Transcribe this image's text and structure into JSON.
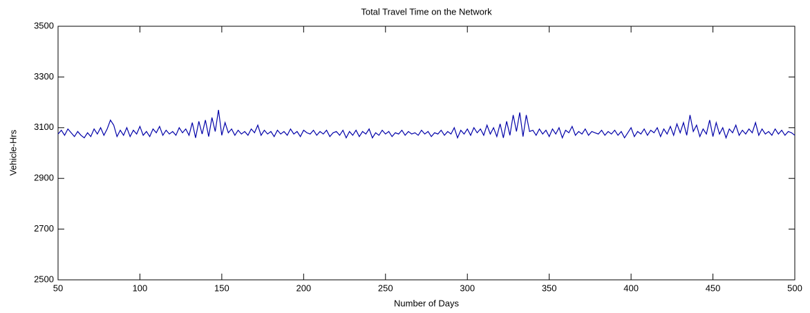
{
  "chart_data": {
    "type": "line",
    "title": "Total Travel Time on the Network",
    "x_label": "Number of Days",
    "y_label": "Vehicle-Hrs",
    "x": [
      50,
      52,
      54,
      56,
      58,
      60,
      62,
      64,
      66,
      68,
      70,
      72,
      74,
      76,
      78,
      80,
      82,
      84,
      86,
      88,
      90,
      92,
      94,
      96,
      98,
      100,
      102,
      104,
      106,
      108,
      110,
      112,
      114,
      116,
      118,
      120,
      122,
      124,
      126,
      128,
      130,
      132,
      134,
      136,
      138,
      140,
      142,
      144,
      146,
      148,
      150,
      152,
      154,
      156,
      158,
      160,
      162,
      164,
      166,
      168,
      170,
      172,
      174,
      176,
      178,
      180,
      182,
      184,
      186,
      188,
      190,
      192,
      194,
      196,
      198,
      200,
      202,
      204,
      206,
      208,
      210,
      212,
      214,
      216,
      218,
      220,
      222,
      224,
      226,
      228,
      230,
      232,
      234,
      236,
      238,
      240,
      242,
      244,
      246,
      248,
      250,
      252,
      254,
      256,
      258,
      260,
      262,
      264,
      266,
      268,
      270,
      272,
      274,
      276,
      278,
      280,
      282,
      284,
      286,
      288,
      290,
      292,
      294,
      296,
      298,
      300,
      302,
      304,
      306,
      308,
      310,
      312,
      314,
      316,
      318,
      320,
      322,
      324,
      326,
      328,
      330,
      332,
      334,
      336,
      338,
      340,
      342,
      344,
      346,
      348,
      350,
      352,
      354,
      356,
      358,
      360,
      362,
      364,
      366,
      368,
      370,
      372,
      374,
      376,
      378,
      380,
      382,
      384,
      386,
      388,
      390,
      392,
      394,
      396,
      398,
      400,
      402,
      404,
      406,
      408,
      410,
      412,
      414,
      416,
      418,
      420,
      422,
      424,
      426,
      428,
      430,
      432,
      434,
      436,
      438,
      440,
      442,
      444,
      446,
      448,
      450,
      452,
      454,
      456,
      458,
      460,
      462,
      464,
      466,
      468,
      470,
      472,
      474,
      476,
      478,
      480,
      482,
      484,
      486,
      488,
      490,
      492,
      494,
      496,
      498,
      500
    ],
    "series": [
      {
        "name": "Total travel time",
        "color": "#0000a8",
        "values": [
          3075,
          3090,
          3070,
          3095,
          3080,
          3065,
          3085,
          3070,
          3060,
          3080,
          3065,
          3095,
          3075,
          3100,
          3070,
          3095,
          3130,
          3110,
          3065,
          3090,
          3070,
          3100,
          3065,
          3090,
          3075,
          3105,
          3070,
          3085,
          3065,
          3095,
          3080,
          3105,
          3070,
          3090,
          3075,
          3085,
          3070,
          3100,
          3080,
          3095,
          3070,
          3120,
          3060,
          3125,
          3075,
          3130,
          3065,
          3140,
          3085,
          3170,
          3070,
          3120,
          3080,
          3095,
          3070,
          3090,
          3075,
          3085,
          3070,
          3095,
          3080,
          3110,
          3070,
          3090,
          3075,
          3085,
          3065,
          3090,
          3075,
          3085,
          3070,
          3095,
          3075,
          3085,
          3065,
          3090,
          3080,
          3075,
          3090,
          3070,
          3085,
          3075,
          3090,
          3065,
          3080,
          3085,
          3070,
          3090,
          3060,
          3085,
          3070,
          3090,
          3065,
          3085,
          3075,
          3095,
          3060,
          3080,
          3070,
          3090,
          3075,
          3085,
          3065,
          3080,
          3075,
          3090,
          3070,
          3085,
          3075,
          3080,
          3070,
          3090,
          3075,
          3085,
          3065,
          3080,
          3075,
          3090,
          3070,
          3085,
          3075,
          3100,
          3060,
          3090,
          3075,
          3095,
          3070,
          3100,
          3080,
          3095,
          3070,
          3110,
          3075,
          3100,
          3065,
          3115,
          3060,
          3125,
          3070,
          3150,
          3085,
          3160,
          3065,
          3150,
          3085,
          3090,
          3070,
          3095,
          3075,
          3090,
          3065,
          3095,
          3075,
          3100,
          3060,
          3090,
          3080,
          3105,
          3070,
          3085,
          3075,
          3095,
          3070,
          3085,
          3080,
          3075,
          3090,
          3070,
          3085,
          3075,
          3090,
          3070,
          3085,
          3060,
          3080,
          3100,
          3065,
          3085,
          3075,
          3095,
          3070,
          3090,
          3080,
          3100,
          3065,
          3095,
          3075,
          3105,
          3070,
          3115,
          3080,
          3120,
          3070,
          3150,
          3085,
          3110,
          3065,
          3095,
          3075,
          3130,
          3065,
          3120,
          3075,
          3100,
          3060,
          3095,
          3080,
          3110,
          3070,
          3090,
          3075,
          3095,
          3080,
          3120,
          3070,
          3095,
          3075,
          3085,
          3070,
          3095,
          3075,
          3090,
          3070,
          3085,
          3080,
          3070
        ]
      }
    ],
    "xlim": [
      50,
      500
    ],
    "ylim": [
      2500,
      3500
    ],
    "xticks": [
      50,
      100,
      150,
      200,
      250,
      300,
      350,
      400,
      450,
      500
    ],
    "yticks": [
      2500,
      2700,
      2900,
      3100,
      3300,
      3500
    ],
    "grid": false
  }
}
